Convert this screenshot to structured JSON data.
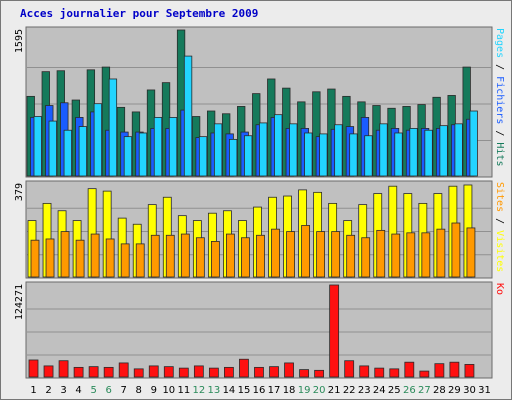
{
  "title": "Acces journalier pour Septembre 2009",
  "colors": {
    "hits": "#157a5b",
    "files": "#1a5cff",
    "pages": "#22d4ff",
    "visits": "#ffff00",
    "sites": "#ff9900",
    "ko": "#ff1010",
    "weekend": "#2a8a5a",
    "weekday": "#000000",
    "panel": "#c0c0c0",
    "gridline": "#909090"
  },
  "chart_data": [
    {
      "type": "bar",
      "panel": "hits-files-pages",
      "ymax_label": "1595",
      "ylim": [
        0,
        1595
      ],
      "right_labels": [
        {
          "text": "Pages",
          "color": "#22d4ff"
        },
        {
          "text": "Fichiers",
          "color": "#1a5cff"
        },
        {
          "text": "Hits",
          "color": "#157a5b"
        }
      ],
      "categories": [
        "1",
        "2",
        "3",
        "4",
        "5",
        "6",
        "7",
        "8",
        "9",
        "10",
        "11",
        "12",
        "13",
        "14",
        "15",
        "16",
        "17",
        "18",
        "19",
        "20",
        "21",
        "22",
        "23",
        "24",
        "25",
        "26",
        "27",
        "28",
        "29",
        "30",
        "31"
      ],
      "weekend_days": [
        "5",
        "6",
        "12",
        "13",
        "19",
        "20",
        "26",
        "27"
      ],
      "series": [
        {
          "name": "Hits",
          "values": [
            870,
            1140,
            1150,
            830,
            1160,
            1190,
            750,
            700,
            940,
            1020,
            1595,
            650,
            710,
            680,
            760,
            900,
            1060,
            960,
            810,
            920,
            950,
            870,
            810,
            770,
            740,
            760,
            780,
            860,
            880,
            1190,
            null
          ]
        },
        {
          "name": "Fichiers",
          "values": [
            640,
            770,
            800,
            640,
            700,
            500,
            480,
            480,
            520,
            520,
            720,
            420,
            470,
            460,
            480,
            560,
            640,
            520,
            520,
            430,
            510,
            540,
            640,
            500,
            520,
            500,
            520,
            520,
            560,
            620,
            null
          ]
        },
        {
          "name": "Pages",
          "values": [
            650,
            600,
            500,
            540,
            790,
            1060,
            430,
            470,
            640,
            640,
            1310,
            430,
            570,
            400,
            440,
            580,
            670,
            570,
            470,
            460,
            560,
            460,
            440,
            570,
            470,
            520,
            500,
            550,
            570,
            710,
            null
          ]
        }
      ]
    },
    {
      "type": "bar",
      "panel": "visits-sites",
      "ymax_label": "379",
      "ylim": [
        0,
        379
      ],
      "right_labels": [
        {
          "text": "Sites",
          "color": "#ff9900"
        },
        {
          "text": "Visites",
          "color": "#ffff00"
        }
      ],
      "categories": [
        "1",
        "2",
        "3",
        "4",
        "5",
        "6",
        "7",
        "8",
        "9",
        "10",
        "11",
        "12",
        "13",
        "14",
        "15",
        "16",
        "17",
        "18",
        "19",
        "20",
        "21",
        "22",
        "23",
        "24",
        "25",
        "26",
        "27",
        "28",
        "29",
        "30",
        "31"
      ],
      "series": [
        {
          "name": "Visites",
          "values": [
            230,
            300,
            270,
            230,
            360,
            350,
            240,
            215,
            295,
            325,
            250,
            230,
            260,
            270,
            230,
            285,
            325,
            330,
            355,
            345,
            300,
            230,
            295,
            340,
            370,
            340,
            300,
            340,
            370,
            375,
            null
          ]
        },
        {
          "name": "Sites",
          "values": [
            150,
            155,
            185,
            150,
            175,
            155,
            135,
            135,
            170,
            170,
            175,
            160,
            145,
            175,
            160,
            170,
            195,
            185,
            210,
            185,
            185,
            170,
            160,
            190,
            175,
            180,
            180,
            195,
            220,
            200,
            null
          ]
        }
      ]
    },
    {
      "type": "bar",
      "panel": "ko",
      "ymax_label": "124271",
      "ylim": [
        0,
        124271
      ],
      "right_labels": [
        {
          "text": "Ko",
          "color": "#ff1010"
        }
      ],
      "categories": [
        "1",
        "2",
        "3",
        "4",
        "5",
        "6",
        "7",
        "8",
        "9",
        "10",
        "11",
        "12",
        "13",
        "14",
        "15",
        "16",
        "17",
        "18",
        "19",
        "20",
        "21",
        "22",
        "23",
        "24",
        "25",
        "26",
        "27",
        "28",
        "29",
        "30",
        "31"
      ],
      "series": [
        {
          "name": "Ko",
          "values": [
            23000,
            15000,
            22000,
            13000,
            14000,
            13000,
            19000,
            11000,
            15000,
            14000,
            12000,
            15000,
            12000,
            13000,
            24000,
            13000,
            14000,
            19000,
            10000,
            9000,
            124271,
            22000,
            15000,
            12000,
            11000,
            20000,
            8000,
            18000,
            20000,
            17000,
            null
          ]
        }
      ]
    }
  ]
}
